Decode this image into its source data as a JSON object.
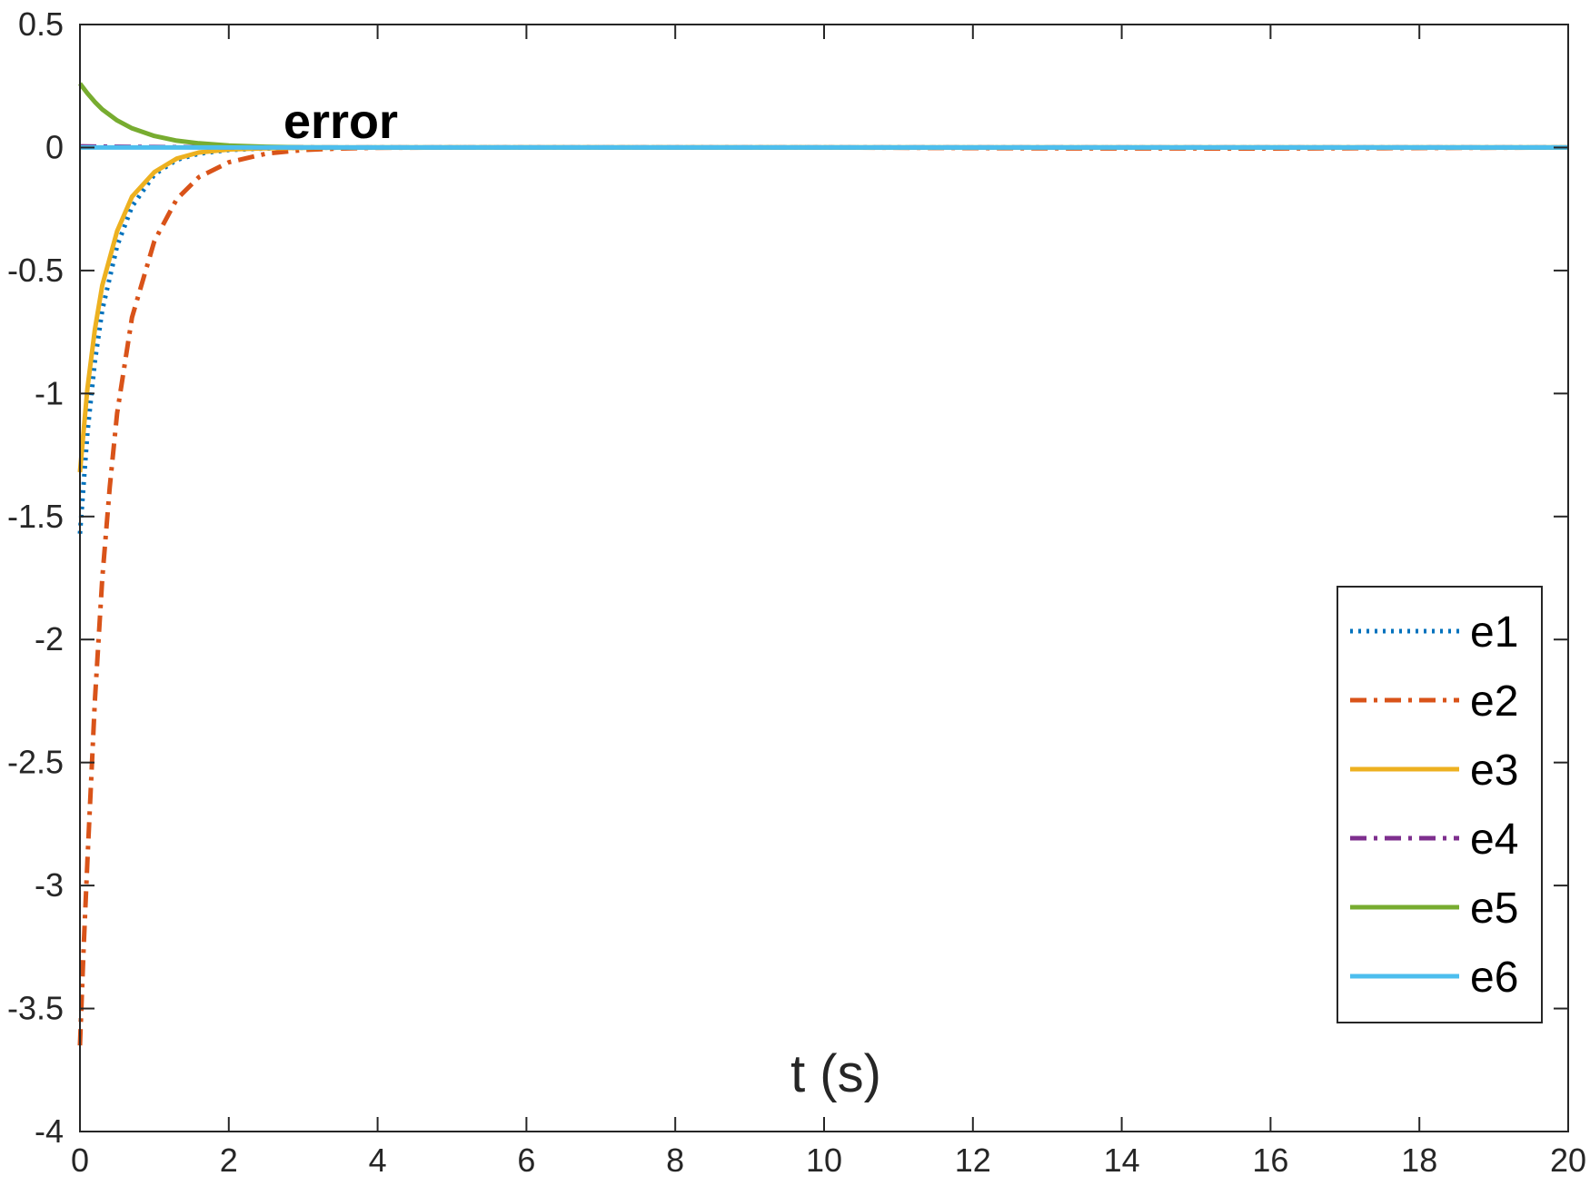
{
  "chart_data": {
    "type": "line",
    "title": "error",
    "xlabel": "t (s)",
    "ylabel": "",
    "xlim": [
      0,
      20
    ],
    "ylim": [
      -4,
      0.5
    ],
    "xticks": [
      0,
      2,
      4,
      6,
      8,
      10,
      12,
      14,
      16,
      18,
      20
    ],
    "yticks": [
      0.5,
      0,
      -0.5,
      -1,
      -1.5,
      -2,
      -2.5,
      -3,
      -3.5,
      -4
    ],
    "xtick_labels": [
      "0",
      "2",
      "4",
      "6",
      "8",
      "10",
      "12",
      "14",
      "16",
      "18",
      "20"
    ],
    "ytick_labels": [
      "0.5",
      "0",
      "-0.5",
      "-1",
      "-1.5",
      "-2",
      "-2.5",
      "-3",
      "-3.5",
      "-4"
    ],
    "grid": false,
    "legend_position": "bottom-right",
    "series": [
      {
        "name": "e1",
        "color": "#0072BD",
        "style": "dotted",
        "x": [
          0,
          0.1,
          0.2,
          0.3,
          0.5,
          0.7,
          1.0,
          1.3,
          1.6,
          2.0,
          2.5,
          3.0,
          4.0,
          6.0,
          10.0,
          14.0,
          20.0
        ],
        "y": [
          -1.57,
          -1.16,
          -0.87,
          -0.66,
          -0.4,
          -0.24,
          -0.11,
          -0.05,
          -0.025,
          -0.01,
          -0.004,
          -0.001,
          0,
          0,
          0,
          0,
          0
        ]
      },
      {
        "name": "e2",
        "color": "#D95319",
        "style": "dashdot",
        "x": [
          0,
          0.05,
          0.1,
          0.2,
          0.3,
          0.4,
          0.5,
          0.7,
          1.0,
          1.3,
          1.6,
          2.0,
          2.5,
          3.0,
          3.5,
          4.0,
          5.0,
          6.0,
          10.0,
          13.0,
          16.0,
          20.0
        ],
        "y": [
          -3.65,
          -3.25,
          -2.9,
          -2.25,
          -1.75,
          -1.38,
          -1.08,
          -0.69,
          -0.38,
          -0.21,
          -0.12,
          -0.06,
          -0.025,
          -0.01,
          -0.004,
          -0.001,
          0,
          0,
          0,
          -0.003,
          -0.004,
          0
        ]
      },
      {
        "name": "e3",
        "color": "#EDB120",
        "style": "solid",
        "x": [
          0,
          0.1,
          0.2,
          0.3,
          0.5,
          0.7,
          1.0,
          1.3,
          1.6,
          2.0,
          2.5,
          3.0,
          4.0,
          10.0,
          20.0
        ],
        "y": [
          -1.32,
          -0.98,
          -0.74,
          -0.56,
          -0.34,
          -0.2,
          -0.1,
          -0.045,
          -0.02,
          -0.008,
          -0.003,
          -0.001,
          0,
          0,
          0
        ]
      },
      {
        "name": "e4",
        "color": "#7E2F8E",
        "style": "dashdot",
        "x": [
          0,
          0.5,
          1.0,
          2.0,
          4.0,
          20.0
        ],
        "y": [
          0.005,
          0.003,
          0.002,
          0.001,
          0,
          0
        ]
      },
      {
        "name": "e5",
        "color": "#77AC30",
        "style": "solid",
        "x": [
          0,
          0.1,
          0.2,
          0.3,
          0.5,
          0.7,
          1.0,
          1.3,
          1.6,
          2.0,
          2.5,
          3.0,
          4.0,
          10.0,
          20.0
        ],
        "y": [
          0.26,
          0.22,
          0.185,
          0.155,
          0.11,
          0.078,
          0.047,
          0.028,
          0.017,
          0.008,
          0.003,
          0.001,
          0,
          0,
          0
        ]
      },
      {
        "name": "e6",
        "color": "#4DBEEE",
        "style": "solid",
        "x": [
          0,
          5,
          10,
          15,
          20
        ],
        "y": [
          0,
          0,
          0,
          0,
          0
        ]
      }
    ]
  }
}
